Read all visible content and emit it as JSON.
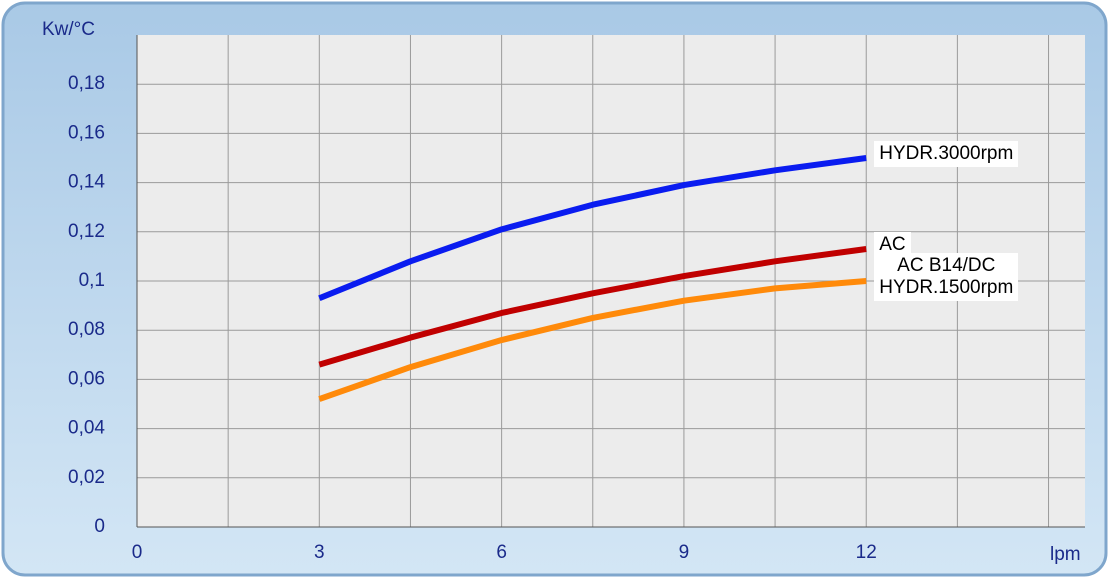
{
  "chart_data": {
    "type": "line",
    "y_label": "Kw/°C",
    "x_label": "lpm",
    "x": [
      3,
      4.5,
      6,
      7.5,
      9,
      10.5,
      12
    ],
    "series": [
      {
        "name": "HYDR.3000rpm",
        "color": "#0a1cf0",
        "values": [
          0.093,
          0.108,
          0.121,
          0.131,
          0.139,
          0.145,
          0.15
        ]
      },
      {
        "name": "AC",
        "color": "#c00000",
        "values": [
          0.066,
          0.077,
          0.087,
          0.095,
          0.102,
          0.108,
          0.113
        ]
      },
      {
        "name": "AC B14/DC\nHYDR.1500rpm",
        "color": "#ff8a0a",
        "values": [
          0.052,
          0.065,
          0.076,
          0.085,
          0.092,
          0.097,
          0.1
        ]
      }
    ],
    "xlim": [
      0,
      15.6
    ],
    "xticks": [
      0,
      3,
      6,
      9,
      12
    ],
    "x_grid": [
      1.5,
      3,
      4.5,
      6,
      7.5,
      9,
      10.5,
      12,
      13.5,
      15
    ],
    "ylim": [
      0,
      0.2
    ],
    "yticks": [
      0,
      {
        "value": 0.02,
        "label": "0,02"
      },
      {
        "value": 0.04,
        "label": "0,04"
      },
      {
        "value": 0.06,
        "label": "0,06"
      },
      {
        "value": 0.08,
        "label": "0,08"
      },
      {
        "value": 0.1,
        "label": "0,1"
      },
      {
        "value": 0.12,
        "label": "0,12"
      },
      {
        "value": 0.14,
        "label": "0,14"
      },
      {
        "value": 0.16,
        "label": "0,16"
      },
      {
        "value": 0.18,
        "label": "0,18"
      }
    ],
    "grid": true
  }
}
